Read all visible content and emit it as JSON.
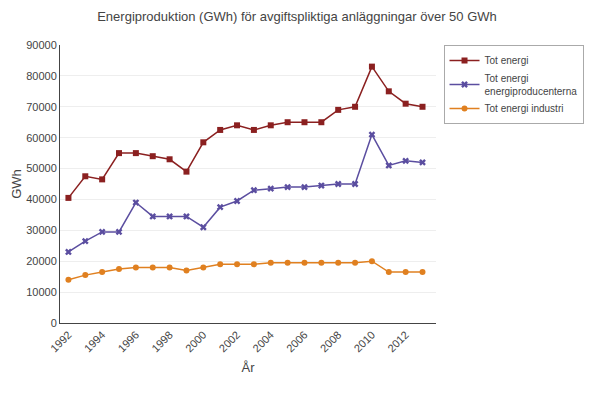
{
  "chart_data": {
    "type": "line",
    "title": "Energiproduktion (GWh) för avgiftspliktiga anläggningar över 50 GWh",
    "x_label": "År",
    "y_label": "GWh",
    "x": [
      1992,
      1993,
      1994,
      1995,
      1996,
      1997,
      1998,
      1999,
      2000,
      2001,
      2002,
      2003,
      2004,
      2005,
      2006,
      2007,
      2008,
      2009,
      2010,
      2011,
      2012,
      2013
    ],
    "series": [
      {
        "name": "Tot energi",
        "color": "#8B2020",
        "marker": "square",
        "values": [
          40500,
          47500,
          46500,
          55000,
          55000,
          54000,
          53000,
          49000,
          58500,
          62500,
          64000,
          62500,
          64000,
          65000,
          65000,
          65000,
          69000,
          70000,
          83000,
          75000,
          71000,
          70000
        ]
      },
      {
        "name": "Tot energi\nenergiproducenterna",
        "color": "#5B4EA0",
        "marker": "x",
        "values": [
          23000,
          26500,
          29500,
          29500,
          39000,
          34500,
          34500,
          34500,
          31000,
          37500,
          39500,
          43000,
          43500,
          44000,
          44000,
          44500,
          45000,
          45000,
          61000,
          51000,
          52500,
          52000
        ]
      },
      {
        "name": "Tot energi industri",
        "color": "#E08020",
        "marker": "circle",
        "values": [
          14000,
          15500,
          16500,
          17500,
          18000,
          18000,
          18000,
          17000,
          18000,
          19000,
          19000,
          19000,
          19500,
          19500,
          19500,
          19500,
          19500,
          19500,
          20000,
          16500,
          16500,
          16500
        ]
      }
    ],
    "xlim": [
      1991.5,
      2013.8
    ],
    "xticks": [
      1992,
      1994,
      1996,
      1998,
      2000,
      2002,
      2004,
      2006,
      2008,
      2010,
      2012
    ],
    "ylim": [
      0,
      90000
    ],
    "yticks": [
      0,
      10000,
      20000,
      30000,
      40000,
      50000,
      60000,
      70000,
      80000,
      90000
    ],
    "grid": "y",
    "legend": "right"
  }
}
